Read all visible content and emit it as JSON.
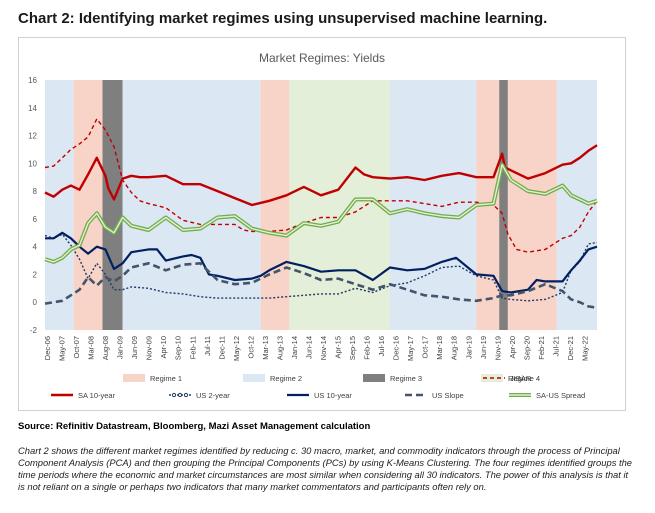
{
  "page": {
    "heading": "Chart 2: Identifying market regimes using unsupervised machine learning.",
    "source": "Source: Refinitiv Datastream, Bloomberg, Mazi Asset Management calculation",
    "description": "Chart 2 shows the different market regimes identified by reducing c. 30 macro, market, and commodity indicators through the process of Principal Component Analysis (PCA) and then grouping the Principal Components (PCs) by using K-Means Clustering. The four regimes identified groups the time periods where the economic and market circumstances are most similar when considering all 30 indicators. The power of this analysis is that it is not reliant on a single or perhaps two indicators that many market commentators and participants often rely on."
  },
  "chart_data": {
    "type": "line",
    "title": "Market Regimes: Yields",
    "xlabel": "",
    "ylabel": "",
    "ylim": [
      -2,
      16
    ],
    "yticks": [
      -2,
      0,
      2,
      4,
      6,
      8,
      10,
      12,
      14,
      16
    ],
    "x_start": "2006-12",
    "x_end": "2022-12",
    "xticks": [
      "Dec-06",
      "May-07",
      "Oct-07",
      "Mar-08",
      "Aug-08",
      "Jan-09",
      "Jun-09",
      "Nov-09",
      "Apr-10",
      "Sep-10",
      "Feb-11",
      "Jul-11",
      "Dec-11",
      "May-12",
      "Oct-12",
      "Mar-13",
      "Aug-13",
      "Jan-14",
      "Jun-14",
      "Nov-14",
      "Apr-15",
      "Sep-15",
      "Feb-16",
      "Jul-16",
      "Dec-16",
      "May-17",
      "Oct-17",
      "Mar-18",
      "Aug-18",
      "Jan-19",
      "Jun-19",
      "Nov-19",
      "Apr-20",
      "Sep-20",
      "Feb-21",
      "Jul-21",
      "Dec-21",
      "May-22"
    ],
    "grid": false,
    "legend_position": "bottom",
    "regime_colors": {
      "Regime 1": "#f8d3c7",
      "Regime 2": "#dce7f4",
      "Regime 3": "#7f7f7f",
      "Regime 4": "#e4efd9"
    },
    "regimes": [
      {
        "regime": "Regime 2",
        "start": "2006-12",
        "end": "2007-10"
      },
      {
        "regime": "Regime 1",
        "start": "2007-10",
        "end": "2008-08"
      },
      {
        "regime": "Regime 3",
        "start": "2008-08",
        "end": "2009-03"
      },
      {
        "regime": "Regime 2",
        "start": "2009-03",
        "end": "2013-03"
      },
      {
        "regime": "Regime 1",
        "start": "2013-03",
        "end": "2014-01"
      },
      {
        "regime": "Regime 4",
        "start": "2014-01",
        "end": "2016-12"
      },
      {
        "regime": "Regime 2",
        "start": "2016-12",
        "end": "2019-06"
      },
      {
        "regime": "Regime 1",
        "start": "2019-06",
        "end": "2020-02"
      },
      {
        "regime": "Regime 3",
        "start": "2020-02",
        "end": "2020-05"
      },
      {
        "regime": "Regime 1",
        "start": "2020-05",
        "end": "2021-10"
      },
      {
        "regime": "Regime 2",
        "start": "2021-10",
        "end": "2022-12"
      }
    ],
    "legend": [
      {
        "label": "Regime 1",
        "kind": "band",
        "color": "#f8d3c7"
      },
      {
        "label": "Regime 2",
        "kind": "band",
        "color": "#dce7f4"
      },
      {
        "label": "Regime 3",
        "kind": "band",
        "color": "#7f7f7f"
      },
      {
        "label": "Regime 4",
        "kind": "band",
        "color": "#e4efd9"
      },
      {
        "label": "JIBAR",
        "kind": "line",
        "color": "#c00000",
        "dash": "4,3",
        "width": 1.4
      },
      {
        "label": "SA 10-year",
        "kind": "line",
        "color": "#c00000",
        "dash": "",
        "width": 2.4
      },
      {
        "label": "US 2-year",
        "kind": "line",
        "color": "#1f3864",
        "dash": "2,2",
        "width": 1.4,
        "marker": "circle"
      },
      {
        "label": "US 10-year",
        "kind": "line",
        "color": "#002060",
        "dash": "",
        "width": 2.2
      },
      {
        "label": "US Slope",
        "kind": "line",
        "color": "#44546a",
        "dash": "7,4",
        "width": 2.6
      },
      {
        "label": "SA-US Spread",
        "kind": "line",
        "color": "#70ad47",
        "dash": "",
        "width": 2.4,
        "marker": "outline"
      }
    ],
    "series": [
      {
        "name": "JIBAR",
        "color": "#c00000",
        "dash": "4,3",
        "width": 1.4,
        "x": [
          "2006-12",
          "2007-03",
          "2007-06",
          "2007-09",
          "2007-12",
          "2008-03",
          "2008-06",
          "2008-09",
          "2008-12",
          "2009-03",
          "2009-06",
          "2009-09",
          "2009-12",
          "2010-06",
          "2010-12",
          "2011-06",
          "2011-12",
          "2012-06",
          "2012-09",
          "2012-12",
          "2013-06",
          "2013-12",
          "2014-06",
          "2014-12",
          "2015-06",
          "2015-12",
          "2016-06",
          "2016-12",
          "2017-06",
          "2017-12",
          "2018-06",
          "2018-12",
          "2019-06",
          "2019-12",
          "2020-03",
          "2020-05",
          "2020-08",
          "2020-12",
          "2021-06",
          "2021-12",
          "2022-03",
          "2022-06",
          "2022-09",
          "2022-12"
        ],
        "y": [
          9.7,
          9.8,
          10.4,
          11.0,
          11.4,
          11.9,
          13.2,
          12.4,
          11.2,
          8.8,
          7.9,
          7.3,
          7.1,
          6.8,
          5.9,
          5.6,
          5.6,
          5.6,
          5.2,
          5.1,
          5.1,
          5.2,
          5.7,
          6.1,
          6.1,
          6.5,
          7.3,
          7.3,
          7.3,
          7.1,
          6.9,
          7.2,
          7.2,
          7.0,
          6.4,
          4.9,
          3.8,
          3.6,
          3.8,
          4.6,
          4.8,
          5.4,
          6.5,
          7.3
        ]
      },
      {
        "name": "SA 10-year",
        "color": "#c00000",
        "dash": "",
        "width": 2.4,
        "x": [
          "2006-12",
          "2007-03",
          "2007-06",
          "2007-09",
          "2007-12",
          "2008-03",
          "2008-06",
          "2008-09",
          "2008-10",
          "2008-12",
          "2009-03",
          "2009-06",
          "2009-09",
          "2009-12",
          "2010-06",
          "2010-12",
          "2011-06",
          "2011-12",
          "2012-06",
          "2012-12",
          "2013-06",
          "2013-12",
          "2014-06",
          "2014-12",
          "2015-06",
          "2015-12",
          "2016-03",
          "2016-06",
          "2016-12",
          "2017-06",
          "2017-12",
          "2018-06",
          "2018-12",
          "2019-06",
          "2019-12",
          "2020-03",
          "2020-04",
          "2020-06",
          "2020-12",
          "2021-06",
          "2021-12",
          "2022-03",
          "2022-06",
          "2022-09",
          "2022-12"
        ],
        "y": [
          7.9,
          7.6,
          8.1,
          8.4,
          8.1,
          9.2,
          10.4,
          9.1,
          8.2,
          7.4,
          8.9,
          9.1,
          9.0,
          9.0,
          9.1,
          8.5,
          8.5,
          8.0,
          7.5,
          7.0,
          7.3,
          7.7,
          8.3,
          7.7,
          8.1,
          9.7,
          9.2,
          9.0,
          8.9,
          9.0,
          8.8,
          9.1,
          9.3,
          9.0,
          9.0,
          10.7,
          9.7,
          9.5,
          8.9,
          9.3,
          9.9,
          10.0,
          10.4,
          10.9,
          11.3
        ]
      },
      {
        "name": "US 2-year",
        "color": "#1f3864",
        "dash": "2,2",
        "width": 1.4,
        "marker": "circle",
        "x": [
          "2006-12",
          "2007-03",
          "2007-06",
          "2007-09",
          "2007-12",
          "2008-03",
          "2008-06",
          "2008-09",
          "2008-12",
          "2009-03",
          "2009-06",
          "2009-12",
          "2010-06",
          "2010-12",
          "2011-06",
          "2011-12",
          "2012-06",
          "2012-12",
          "2013-06",
          "2013-12",
          "2014-06",
          "2014-12",
          "2015-06",
          "2015-12",
          "2016-06",
          "2016-12",
          "2017-06",
          "2017-12",
          "2018-06",
          "2018-12",
          "2019-06",
          "2019-12",
          "2020-03",
          "2020-06",
          "2020-12",
          "2021-06",
          "2021-12",
          "2022-03",
          "2022-06",
          "2022-09",
          "2022-12"
        ],
        "y": [
          4.8,
          4.6,
          4.9,
          4.1,
          3.1,
          1.7,
          2.8,
          2.0,
          0.9,
          0.9,
          1.1,
          1.0,
          0.7,
          0.6,
          0.4,
          0.3,
          0.3,
          0.3,
          0.3,
          0.4,
          0.5,
          0.6,
          0.6,
          1.0,
          0.7,
          1.2,
          1.4,
          1.9,
          2.5,
          2.6,
          1.9,
          1.6,
          0.3,
          0.2,
          0.1,
          0.2,
          0.7,
          2.3,
          2.9,
          4.2,
          4.3
        ]
      },
      {
        "name": "US 10-year",
        "color": "#002060",
        "dash": "",
        "width": 2.2,
        "x": [
          "2006-12",
          "2007-03",
          "2007-06",
          "2007-09",
          "2007-12",
          "2008-03",
          "2008-06",
          "2008-09",
          "2008-12",
          "2009-03",
          "2009-06",
          "2009-12",
          "2010-03",
          "2010-06",
          "2010-12",
          "2011-03",
          "2011-06",
          "2011-09",
          "2011-12",
          "2012-06",
          "2012-12",
          "2013-03",
          "2013-06",
          "2013-12",
          "2014-06",
          "2014-12",
          "2015-06",
          "2015-12",
          "2016-06",
          "2016-12",
          "2017-06",
          "2017-12",
          "2018-06",
          "2018-11",
          "2019-06",
          "2019-12",
          "2020-03",
          "2020-06",
          "2020-12",
          "2021-03",
          "2021-06",
          "2021-12",
          "2022-03",
          "2022-06",
          "2022-09",
          "2022-12"
        ],
        "y": [
          4.6,
          4.6,
          5.0,
          4.6,
          4.0,
          3.5,
          4.0,
          3.8,
          2.4,
          2.8,
          3.6,
          3.8,
          3.8,
          3.0,
          3.3,
          3.4,
          3.2,
          2.0,
          1.9,
          1.6,
          1.7,
          1.9,
          2.3,
          2.9,
          2.6,
          2.2,
          2.3,
          2.3,
          1.6,
          2.5,
          2.3,
          2.4,
          2.9,
          3.2,
          2.0,
          1.9,
          0.8,
          0.7,
          0.9,
          1.6,
          1.5,
          1.5,
          2.3,
          3.0,
          3.8,
          4.0
        ]
      },
      {
        "name": "US Slope",
        "color": "#44546a",
        "dash": "7,4",
        "width": 2.6,
        "x": [
          "2006-12",
          "2007-03",
          "2007-06",
          "2007-09",
          "2007-12",
          "2008-03",
          "2008-06",
          "2008-09",
          "2008-12",
          "2009-03",
          "2009-06",
          "2009-12",
          "2010-06",
          "2010-12",
          "2011-06",
          "2011-12",
          "2012-06",
          "2012-12",
          "2013-06",
          "2013-12",
          "2014-06",
          "2014-12",
          "2015-06",
          "2015-12",
          "2016-06",
          "2016-12",
          "2017-06",
          "2017-12",
          "2018-06",
          "2018-12",
          "2019-06",
          "2019-12",
          "2020-03",
          "2020-06",
          "2020-12",
          "2021-06",
          "2021-12",
          "2022-03",
          "2022-06",
          "2022-09",
          "2022-12"
        ],
        "y": [
          -0.1,
          0.0,
          0.1,
          0.5,
          0.9,
          1.8,
          1.2,
          1.8,
          1.5,
          1.9,
          2.5,
          2.8,
          2.3,
          2.7,
          2.8,
          1.6,
          1.3,
          1.4,
          2.0,
          2.5,
          2.1,
          1.6,
          1.7,
          1.3,
          0.9,
          1.3,
          0.9,
          0.5,
          0.4,
          0.2,
          0.1,
          0.3,
          0.5,
          0.5,
          0.8,
          1.3,
          0.8,
          0.2,
          0.0,
          -0.3,
          -0.4
        ]
      },
      {
        "name": "SA-US Spread",
        "color": "#70ad47",
        "dash": "",
        "width": 2.4,
        "marker": "outline",
        "x": [
          "2006-12",
          "2007-03",
          "2007-06",
          "2007-09",
          "2007-12",
          "2008-03",
          "2008-06",
          "2008-09",
          "2008-12",
          "2009-03",
          "2009-06",
          "2009-12",
          "2010-06",
          "2010-12",
          "2011-06",
          "2011-12",
          "2012-06",
          "2012-12",
          "2013-06",
          "2013-12",
          "2014-06",
          "2014-12",
          "2015-06",
          "2015-12",
          "2016-06",
          "2016-12",
          "2017-06",
          "2017-12",
          "2018-06",
          "2018-12",
          "2019-06",
          "2019-12",
          "2020-03",
          "2020-06",
          "2020-12",
          "2021-06",
          "2021-12",
          "2022-03",
          "2022-06",
          "2022-09",
          "2022-12"
        ],
        "y": [
          3.1,
          2.9,
          3.2,
          3.8,
          4.1,
          5.7,
          6.4,
          5.4,
          5.0,
          6.1,
          5.5,
          5.2,
          6.1,
          5.2,
          5.3,
          6.1,
          6.2,
          5.3,
          5.0,
          4.8,
          5.7,
          5.5,
          5.8,
          7.4,
          7.4,
          6.4,
          6.7,
          6.4,
          6.2,
          6.1,
          7.0,
          7.1,
          9.9,
          8.8,
          8.0,
          7.8,
          8.4,
          7.7,
          7.4,
          7.1,
          7.3
        ]
      }
    ]
  }
}
